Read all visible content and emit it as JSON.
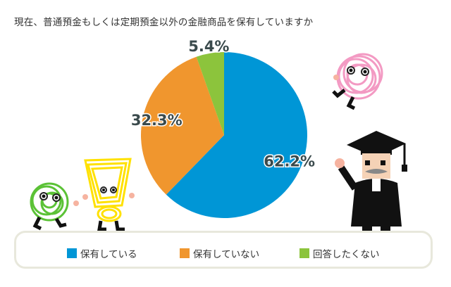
{
  "chart_data": {
    "type": "pie",
    "title": "現在、普通預金もしくは定期預金以外の金融商品を保有していますか",
    "slices": [
      {
        "label": "保有している",
        "value": 62.2,
        "value_label": "62.2%",
        "color": "#0096d6"
      },
      {
        "label": "保有していない",
        "value": 32.3,
        "value_label": "32.3%",
        "color": "#f0962e"
      },
      {
        "label": "回答したくない",
        "value": 5.4,
        "value_label": "5.4%",
        "color": "#8cc43c"
      }
    ],
    "start_angle_deg": 0,
    "direction": "clockwise",
    "legend": "bottom"
  },
  "mascots": [
    {
      "name": "pink-scribble-mascot-icon"
    },
    {
      "name": "green-scribble-mascot-icon"
    },
    {
      "name": "yellow-scribble-mascot-icon"
    },
    {
      "name": "professor-mascot-icon"
    }
  ]
}
